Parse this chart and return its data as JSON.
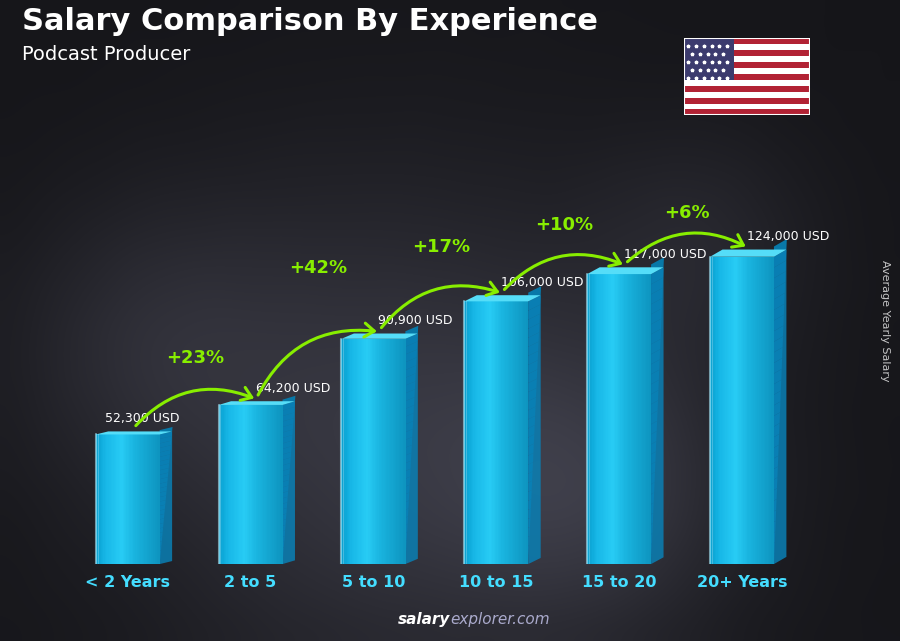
{
  "title": "Salary Comparison By Experience",
  "subtitle": "Podcast Producer",
  "categories": [
    "< 2 Years",
    "2 to 5",
    "5 to 10",
    "10 to 15",
    "15 to 20",
    "20+ Years"
  ],
  "values": [
    52300,
    64200,
    90900,
    106000,
    117000,
    124000
  ],
  "salary_labels": [
    "52,300 USD",
    "64,200 USD",
    "90,900 USD",
    "106,000 USD",
    "117,000 USD",
    "124,000 USD"
  ],
  "pct_changes": [
    "+23%",
    "+42%",
    "+17%",
    "+10%",
    "+6%"
  ],
  "bar_face_color": "#18b8e8",
  "bar_top_color": "#50d8f8",
  "bar_right_color": "#0a85b8",
  "bar_highlight_color": "#aaeeff",
  "bg_color": "#2a2a35",
  "title_color": "#ffffff",
  "subtitle_color": "#ffffff",
  "salary_label_color": "#ffffff",
  "pct_color": "#88ee00",
  "xlabel_color": "#44ddff",
  "watermark_salary_color": "#ffffff",
  "watermark_rest_color": "#aaaaaa",
  "ylabel_text": "Average Yearly Salary",
  "ylim": [
    0,
    150000
  ],
  "bar_width": 0.52,
  "depth_ratio": 0.13
}
